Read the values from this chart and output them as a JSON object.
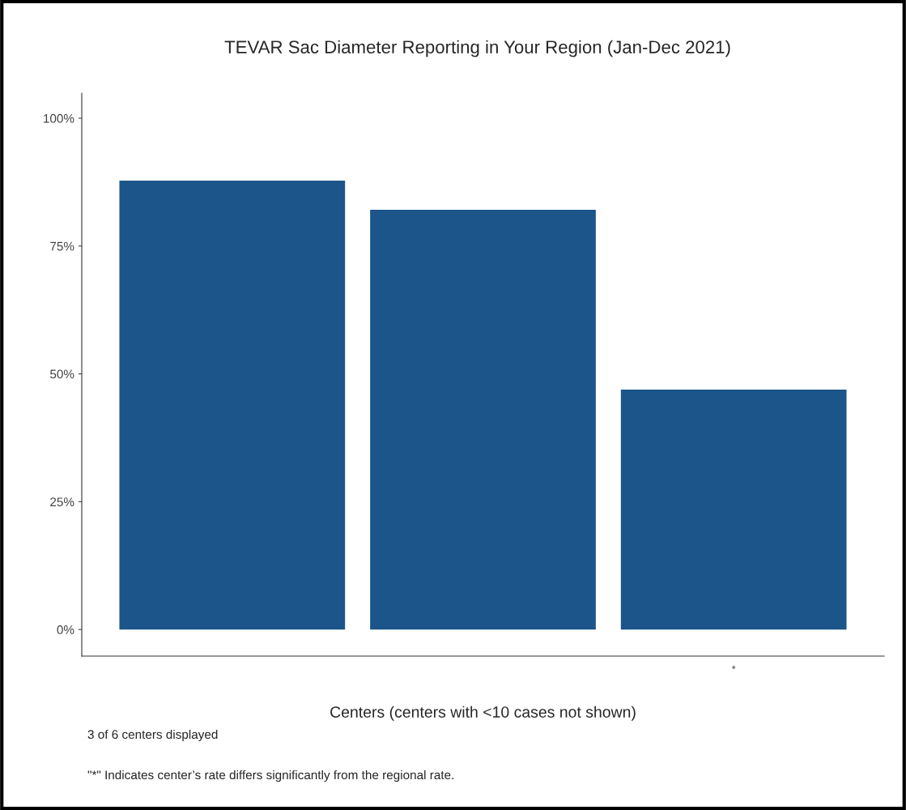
{
  "chart_data": {
    "type": "bar",
    "title": "TEVAR Sac Diameter Reporting in Your Region (Jan-Dec 2021)",
    "xlabel": "Centers (centers with <10 cases not shown)",
    "categories": [
      null,
      null,
      "*"
    ],
    "values": [
      87.8,
      82.1,
      46.9
    ],
    "color": "#1b558a",
    "ylim": [
      -5.2,
      104.9
    ],
    "yticks": [
      {
        "value": 0,
        "label": "0%"
      },
      {
        "value": 25,
        "label": "25%"
      },
      {
        "value": 50,
        "label": "50%"
      },
      {
        "value": 75,
        "label": "75%"
      },
      {
        "value": 100,
        "label": "100%"
      }
    ],
    "grid": false,
    "annotations": [
      "3 of 6 centers displayed",
      "\"*\" Indicates center’s rate differs significantly from the regional rate."
    ]
  }
}
